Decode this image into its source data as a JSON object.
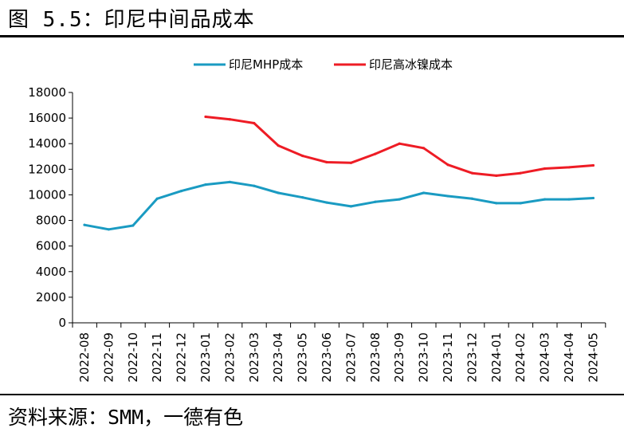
{
  "figure": {
    "title": "图 5.5：印尼中间品成本",
    "source": "资料来源：SMM，一德有色"
  },
  "chart_data": {
    "type": "line",
    "title": "印尼中间品成本",
    "xlabel": "",
    "ylabel": "",
    "ylim": [
      0,
      18000
    ],
    "yticks": [
      0,
      2000,
      4000,
      6000,
      8000,
      10000,
      12000,
      14000,
      16000,
      18000
    ],
    "grid": false,
    "legend_position": "top",
    "categories": [
      "2022-08",
      "2022-09",
      "2022-10",
      "2022-11",
      "2022-12",
      "2023-01",
      "2023-02",
      "2023-03",
      "2023-04",
      "2023-05",
      "2023-06",
      "2023-07",
      "2023-08",
      "2023-09",
      "2023-10",
      "2023-11",
      "2023-12",
      "2024-01",
      "2024-02",
      "2024-03",
      "2024-04",
      "2024-05"
    ],
    "series": [
      {
        "name": "印尼MHP成本",
        "color": "#1a9bc2",
        "values": [
          7650,
          7300,
          7600,
          9700,
          10300,
          10800,
          11000,
          10700,
          10150,
          9800,
          9400,
          9100,
          9450,
          9650,
          10150,
          9900,
          9700,
          9350,
          9350,
          9650,
          9650,
          9750
        ]
      },
      {
        "name": "印尼高冰镍成本",
        "color": "#ee1c25",
        "values": [
          null,
          null,
          null,
          null,
          null,
          16100,
          15900,
          15600,
          13850,
          13050,
          12550,
          12500,
          13200,
          14000,
          13650,
          12350,
          11700,
          11500,
          11700,
          12050,
          12150,
          12300
        ]
      }
    ]
  }
}
